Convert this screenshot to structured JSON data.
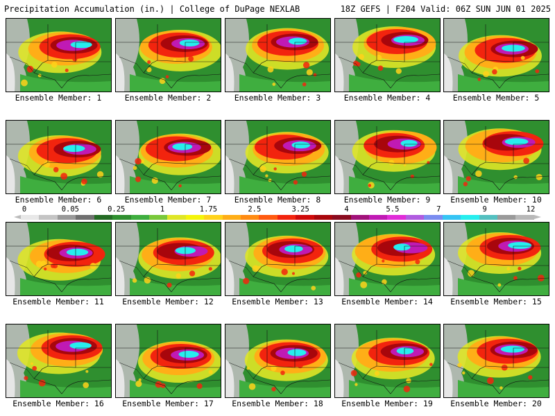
{
  "header": {
    "title": "Precipitation Accumulation (in.) | College of DuPage NEXLAB",
    "run_info": "18Z GEFS | F204 Valid: 06Z SUN JUN 01 2025"
  },
  "colorbar": {
    "labels": [
      "0",
      "0.05",
      "0.25",
      "1",
      "1.75",
      "2.5",
      "3.25",
      "4",
      "5.5",
      "7",
      "9",
      "12"
    ],
    "colors": [
      "#e8e8e8",
      "#c4c4c4",
      "#9a9a9a",
      "#707070",
      "#246b24",
      "#2f8f2f",
      "#3fae3f",
      "#79c83a",
      "#dfe627",
      "#f4f40a",
      "#ffd21a",
      "#ffae17",
      "#ff8b12",
      "#ff5a10",
      "#f2240e",
      "#cf0a0a",
      "#a8060c",
      "#8a0b1f",
      "#a1127a",
      "#c01ab4",
      "#e02cd8",
      "#b05ce0",
      "#7a8cf0",
      "#36c4f4",
      "#27eeee",
      "#54c0c0",
      "#9a9a9a",
      "#b8b8b8"
    ]
  },
  "panels": [
    {
      "label": "Ensemble Member: 1"
    },
    {
      "label": "Ensemble Member: 2"
    },
    {
      "label": "Ensemble Member: 3"
    },
    {
      "label": "Ensemble Member: 4"
    },
    {
      "label": "Ensemble Member: 5"
    },
    {
      "label": "Ensemble Member: 6"
    },
    {
      "label": "Ensemble Member: 7"
    },
    {
      "label": "Ensemble Member: 8"
    },
    {
      "label": "Ensemble Member: 9"
    },
    {
      "label": "Ensemble Member: 10"
    },
    {
      "label": "Ensemble Member: 11"
    },
    {
      "label": "Ensemble Member: 12"
    },
    {
      "label": "Ensemble Member: 13"
    },
    {
      "label": "Ensemble Member: 14"
    },
    {
      "label": "Ensemble Member: 15"
    },
    {
      "label": "Ensemble Member: 16"
    },
    {
      "label": "Ensemble Member: 17"
    },
    {
      "label": "Ensemble Member: 18"
    },
    {
      "label": "Ensemble Member: 19"
    },
    {
      "label": "Ensemble Member: 20"
    }
  ]
}
